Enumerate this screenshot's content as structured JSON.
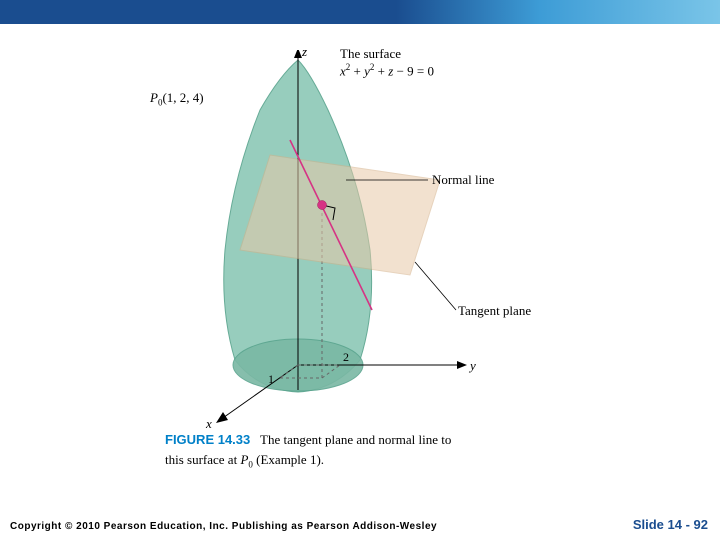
{
  "topbar": {
    "gradient_from": "#1a4d8f",
    "gradient_to": "#7ac5e8"
  },
  "diagram": {
    "type": "3d-surface-with-tangent-plane",
    "point_label": "P",
    "point_sub": "0",
    "point_coords": "(1, 2, 4)",
    "surface_eq_line1": "The surface",
    "surface_eq_line2_html": "<span class='label-italic'>x</span><span class='sup'>2</span> + <span class='label-italic'>y</span><span class='sup'>2</span> + <span class='label-italic'>z</span> − 9 = 0",
    "normal_label": "Normal line",
    "tangent_label": "Tangent plane",
    "axis_x": "x",
    "axis_y": "y",
    "axis_z": "z",
    "tick_x": "1",
    "tick_y": "2",
    "colors": {
      "surface_fill": "#8fc9b8",
      "surface_stroke": "#5aa48e",
      "plane_fill": "#e8c9a8",
      "plane_stroke": "#d4b088",
      "normal_line": "#d63384",
      "point_fill": "#d63384",
      "axis": "#000000",
      "dashed": "#666666"
    }
  },
  "caption": {
    "fig_num": "FIGURE 14.33",
    "text_before": "The tangent plane and normal line to this surface at ",
    "p_label": "P",
    "p_sub": "0",
    "text_after": " (Example 1)."
  },
  "footer": {
    "copyright": "Copyright © 2010 Pearson Education, Inc.  Publishing as Pearson Addison-Wesley",
    "slide": "Slide 14 - 92"
  }
}
